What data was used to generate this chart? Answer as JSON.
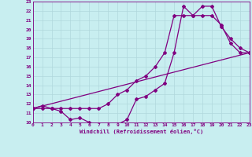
{
  "xlabel": "Windchill (Refroidissement éolien,°C)",
  "bg_color": "#c8eef0",
  "line_color": "#800080",
  "grid_color": "#b0d8dc",
  "xmin": 0,
  "xmax": 23,
  "ymin": 10,
  "ymax": 23,
  "line1_x": [
    0,
    1,
    2,
    3,
    4,
    5,
    6,
    7,
    8,
    9,
    10,
    11,
    12,
    13,
    14,
    15,
    16,
    17,
    18,
    19,
    20,
    21,
    22,
    23
  ],
  "line1_y": [
    11.5,
    11.8,
    11.5,
    11.2,
    10.3,
    10.5,
    10.0,
    9.8,
    9.8,
    9.8,
    10.3,
    12.5,
    12.8,
    13.5,
    14.2,
    17.5,
    22.5,
    21.5,
    22.5,
    22.5,
    20.3,
    19.0,
    18.0,
    17.5
  ],
  "line2_x": [
    0,
    1,
    2,
    3,
    4,
    5,
    6,
    7,
    8,
    9,
    10,
    11,
    12,
    13,
    14,
    15,
    16,
    17,
    18,
    19,
    20,
    21,
    22,
    23
  ],
  "line2_y": [
    11.5,
    11.5,
    11.5,
    11.5,
    11.5,
    11.5,
    11.5,
    11.5,
    12.0,
    13.0,
    13.5,
    14.5,
    15.0,
    16.0,
    17.5,
    21.5,
    21.5,
    21.5,
    21.5,
    21.5,
    20.5,
    18.5,
    17.5,
    17.5
  ],
  "line3_x": [
    0,
    23
  ],
  "line3_y": [
    11.5,
    17.5
  ],
  "marker": "D",
  "markersize": 2,
  "linewidth": 0.9
}
